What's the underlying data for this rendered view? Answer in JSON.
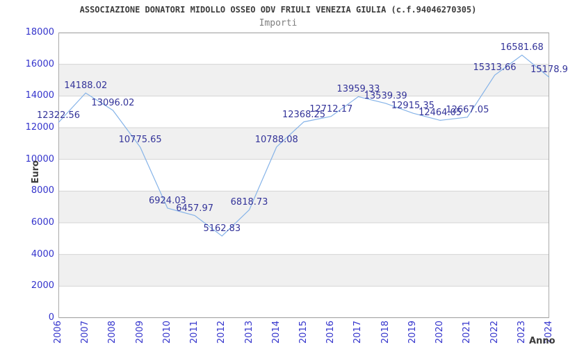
{
  "header": {
    "title": "ASSOCIAZIONE DONATORI MIDOLLO OSSEO ODV FRIULI VENEZIA GIULIA (c.f.94046270305)",
    "subtitle": "Importi"
  },
  "chart_data": {
    "type": "line",
    "title": "ASSOCIAZIONE DONATORI MIDOLLO OSSEO ODV FRIULI VENEZIA GIULIA (c.f.94046270305)",
    "subtitle": "Importi",
    "xlabel": "Anno",
    "ylabel": "Euro",
    "x": [
      "2006",
      "2007",
      "2008",
      "2009",
      "2010",
      "2011",
      "2012",
      "2013",
      "2014",
      "2015",
      "2016",
      "2017",
      "2018",
      "2019",
      "2020",
      "2021",
      "2022",
      "2023",
      "2024"
    ],
    "series": [
      {
        "name": "Importi",
        "values": [
          12322.56,
          14188.02,
          13096.02,
          10775.65,
          6924.03,
          6457.97,
          5162.83,
          6818.73,
          10788.08,
          12368.25,
          12712.17,
          13959.33,
          13539.39,
          12915.35,
          12464.05,
          12667.05,
          15313.66,
          16581.68,
          15178.9
        ],
        "point_labels": [
          "12322.56",
          "14188.02",
          "13096.02",
          "10775.65",
          "6924.03",
          "6457.97",
          "5162.83",
          "6818.73",
          "10788.08",
          "12368.25",
          "12712.17",
          "13959.33",
          "13539.39",
          "12915.35",
          "12464.05",
          "12667.05",
          "15313.66",
          "16581.68",
          "15178.9"
        ]
      }
    ],
    "ylim": [
      0,
      18000
    ],
    "yticks": [
      0,
      2000,
      4000,
      6000,
      8000,
      10000,
      12000,
      14000,
      16000,
      18000
    ],
    "grid": "horizontal",
    "alternating_bands": true,
    "legend_position": "none"
  },
  "colors": {
    "line": "#85b3e8",
    "data_label": "#333399",
    "tick_label": "#3333cc",
    "band": "#f0f0f0",
    "grid": "#d4d4d4",
    "border": "#aaaaaa",
    "title": "#3c3c3c",
    "subtitle": "#7d7d7d",
    "background": "#ffffff"
  }
}
